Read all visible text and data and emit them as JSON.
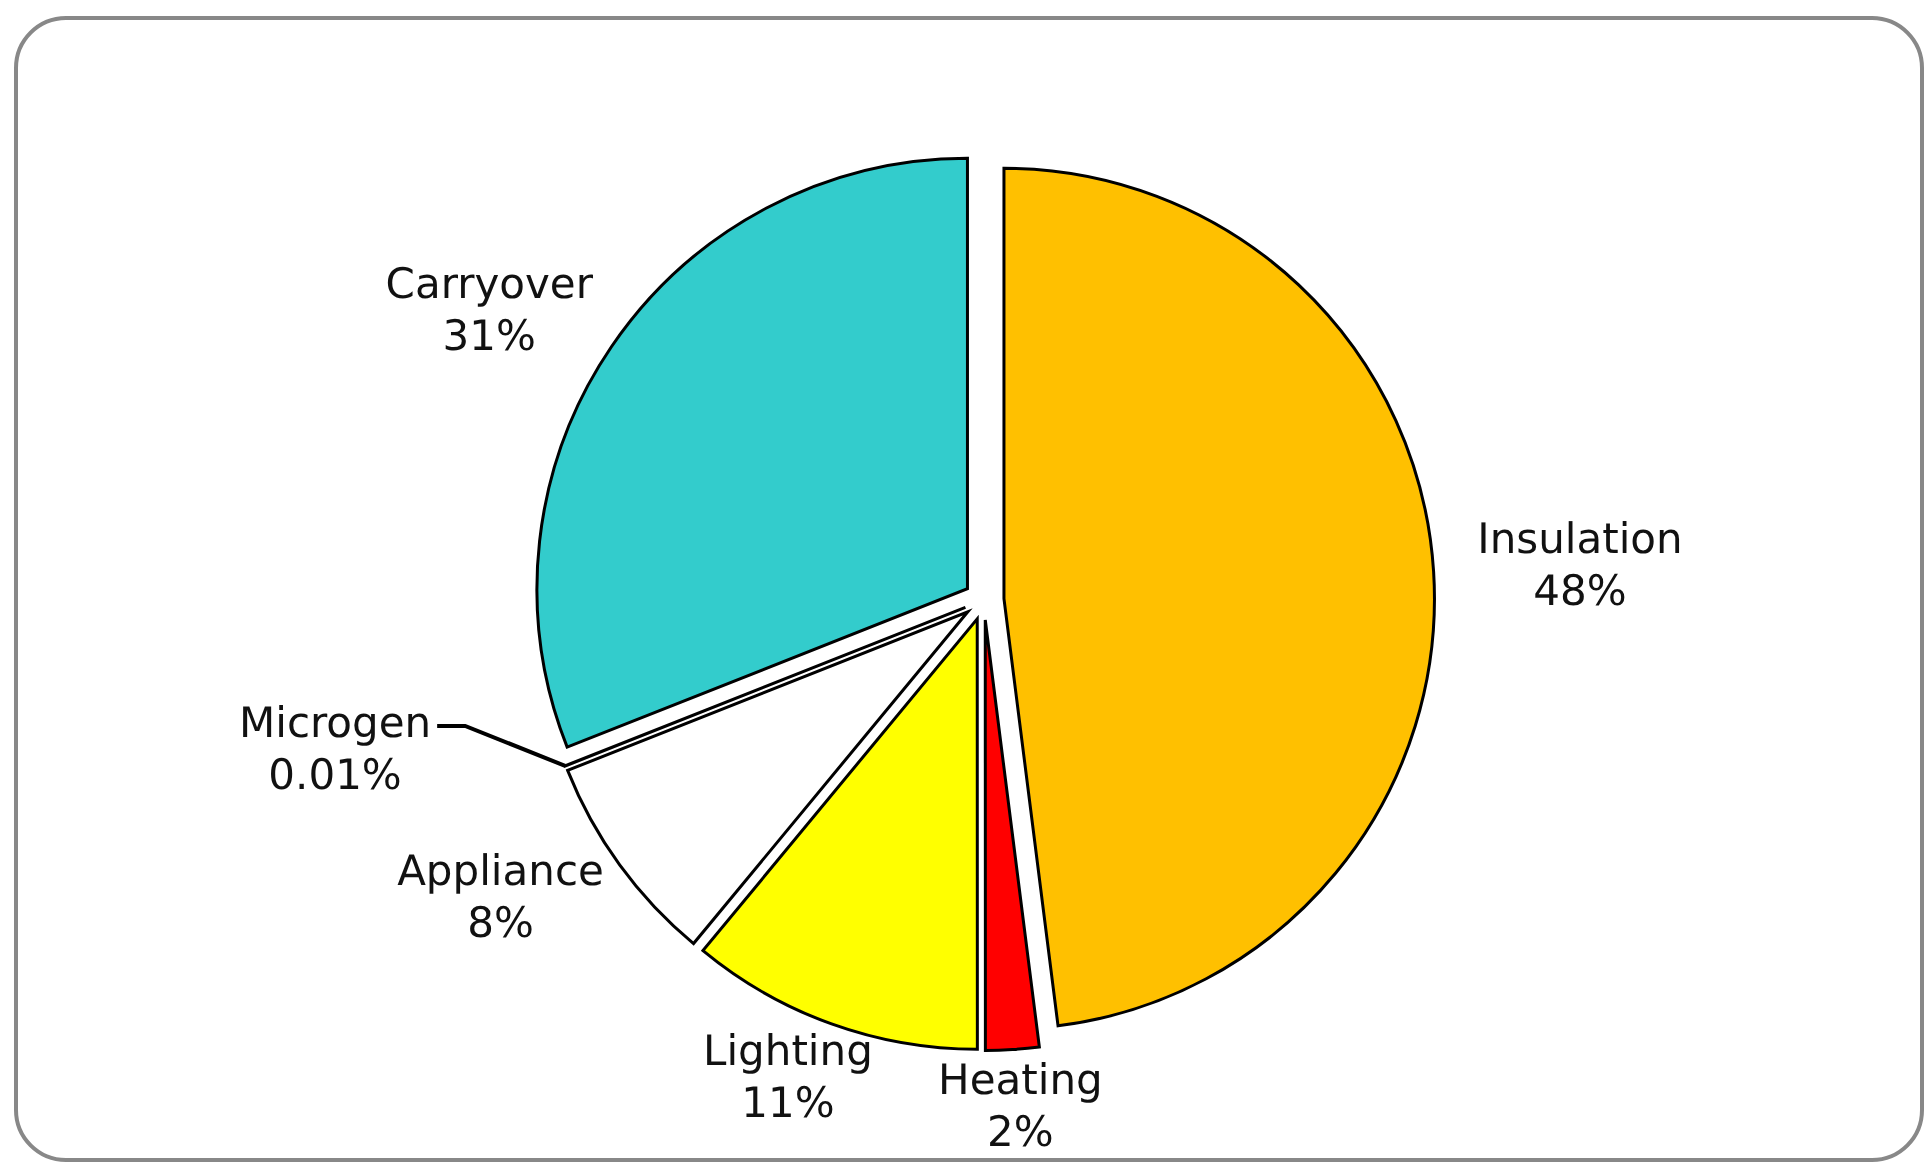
{
  "chart_data": {
    "type": "pie",
    "categories": [
      "Insulation",
      "Heating",
      "Lighting",
      "Appliance",
      "Microgen",
      "Carryover"
    ],
    "values": [
      48,
      2,
      11,
      8,
      0.01,
      31
    ],
    "colors": [
      "#ffc000",
      "#ff0000",
      "#ffff00",
      "#ffffff",
      "#ffffff",
      "#33cccc"
    ],
    "value_labels": [
      "48%",
      "2%",
      "11%",
      "8%",
      "0.01%",
      "31%"
    ]
  }
}
